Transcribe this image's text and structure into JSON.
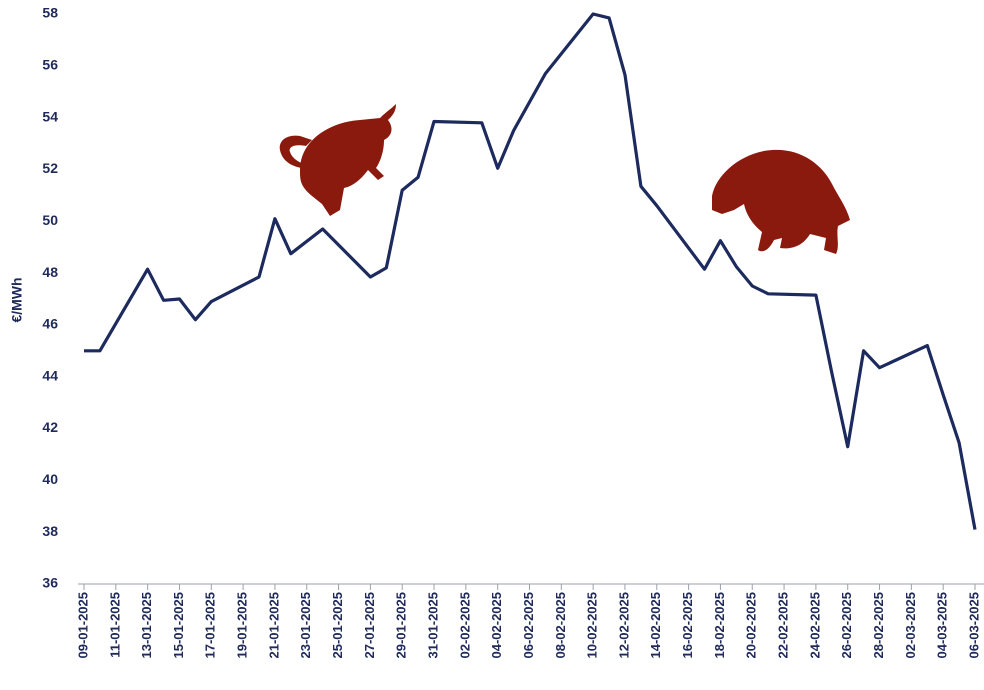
{
  "chart_data": {
    "type": "line",
    "y_label": "€/MWh",
    "x": [
      "09-01-2025",
      "10-01-2025",
      "13-01-2025",
      "14-01-2025",
      "15-01-2025",
      "16-01-2025",
      "17-01-2025",
      "20-01-2025",
      "21-01-2025",
      "22-01-2025",
      "24-01-2025",
      "27-01-2025",
      "28-01-2025",
      "29-01-2025",
      "30-01-2025",
      "31-01-2025",
      "03-02-2025",
      "04-02-2025",
      "05-02-2025",
      "07-02-2025",
      "10-02-2025",
      "11-02-2025",
      "12-02-2025",
      "13-02-2025",
      "14-02-2025",
      "17-02-2025",
      "18-02-2025",
      "19-02-2025",
      "20-02-2025",
      "21-02-2025",
      "24-02-2025",
      "25-02-2025",
      "26-02-2025",
      "27-02-2025",
      "28-02-2025",
      "03-03-2025",
      "04-03-2025",
      "05-03-2025",
      "06-03-2025"
    ],
    "series": [
      {
        "color": "#1c2a5e",
        "values": [
          45.0,
          45.0,
          48.15,
          46.95,
          47.0,
          46.2,
          46.9,
          47.85,
          50.1,
          48.75,
          49.7,
          47.85,
          48.2,
          51.2,
          51.7,
          53.85,
          53.8,
          52.05,
          53.5,
          55.7,
          58.0,
          57.85,
          55.65,
          51.35,
          50.6,
          48.15,
          49.25,
          48.25,
          47.5,
          47.2,
          47.15,
          44.15,
          41.3,
          45.0,
          44.35,
          45.2,
          43.3,
          41.45,
          38.1
        ]
      }
    ],
    "xlim": [
      "09-01-2025",
      "06-03-2025"
    ],
    "xticks": [
      "09-01-2025",
      "11-01-2025",
      "13-01-2025",
      "15-01-2025",
      "17-01-2025",
      "19-01-2025",
      "21-01-2025",
      "23-01-2025",
      "25-01-2025",
      "27-01-2025",
      "29-01-2025",
      "31-01-2025",
      "02-02-2025",
      "04-02-2025",
      "06-02-2025",
      "08-02-2025",
      "10-02-2025",
      "12-02-2025",
      "14-02-2025",
      "16-02-2025",
      "18-02-2025",
      "20-02-2025",
      "22-02-2025",
      "24-02-2025",
      "26-02-2025",
      "28-02-2025",
      "02-03-2025",
      "04-03-2025",
      "06-03-2025"
    ],
    "ylim": [
      36,
      58
    ],
    "yticks": [
      36,
      38,
      40,
      42,
      44,
      46,
      48,
      50,
      52,
      54,
      56,
      58
    ],
    "grid": false
  }
}
